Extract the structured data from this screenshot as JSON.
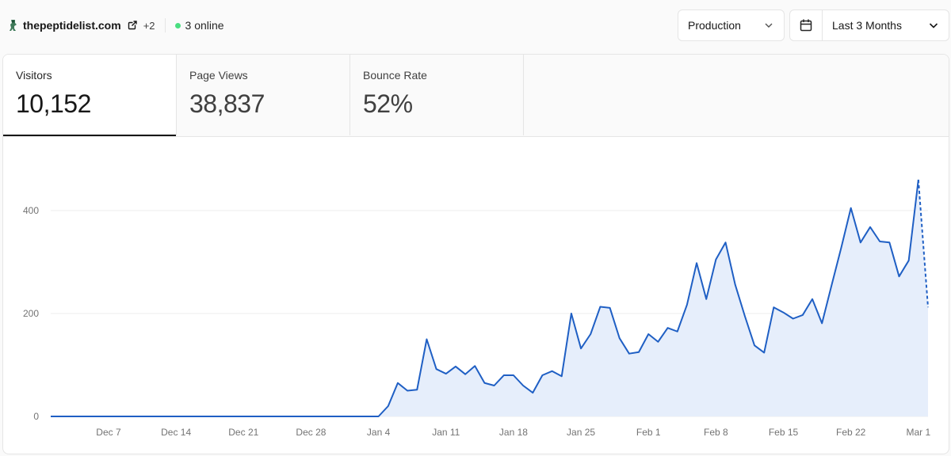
{
  "site": {
    "domain": "thepeptidelist.com",
    "extra_count": "+2",
    "online": "3 online"
  },
  "filters": {
    "environment": "Production",
    "range": "Last 3 Months"
  },
  "metrics": [
    {
      "label": "Visitors",
      "value": "10,152",
      "active": true
    },
    {
      "label": "Page Views",
      "value": "38,837",
      "active": false
    },
    {
      "label": "Bounce Rate",
      "value": "52%",
      "active": false
    }
  ],
  "colors": {
    "line": "#1f5fc4",
    "fill": "#e6eefb",
    "online_dot": "#4ade80"
  },
  "chart_data": {
    "type": "area",
    "title": "",
    "xlabel": "",
    "ylabel": "",
    "ylim": [
      0,
      480
    ],
    "y_ticks": [
      0,
      200,
      400
    ],
    "x_tick_labels": [
      "Dec 7",
      "Dec 14",
      "Dec 21",
      "Dec 28",
      "Jan 4",
      "Jan 11",
      "Jan 18",
      "Jan 25",
      "Feb 1",
      "Feb 8",
      "Feb 15",
      "Feb 22",
      "Mar 1"
    ],
    "grid": true,
    "last_point_dashed": true,
    "series": [
      {
        "start": "Dec 1",
        "values": [
          0,
          0,
          0,
          0,
          0,
          0,
          0,
          0,
          0,
          0,
          0,
          0,
          0,
          0,
          0,
          0,
          0,
          0,
          0,
          0,
          0,
          0,
          0,
          0,
          0,
          0,
          0,
          0,
          0,
          0,
          0,
          0,
          0,
          0,
          0,
          20,
          65,
          50,
          52,
          150,
          92,
          83,
          97,
          82,
          98,
          65,
          60,
          80,
          80,
          60,
          46,
          80,
          88,
          78,
          200,
          132,
          160,
          213,
          211,
          152,
          122,
          125,
          160,
          145,
          172,
          165,
          217,
          298,
          228,
          305,
          338,
          256,
          195,
          138,
          124,
          212,
          202,
          190,
          197,
          228,
          181,
          255,
          328,
          405,
          338,
          368,
          340,
          338,
          272,
          303,
          460,
          212
        ]
      }
    ]
  }
}
